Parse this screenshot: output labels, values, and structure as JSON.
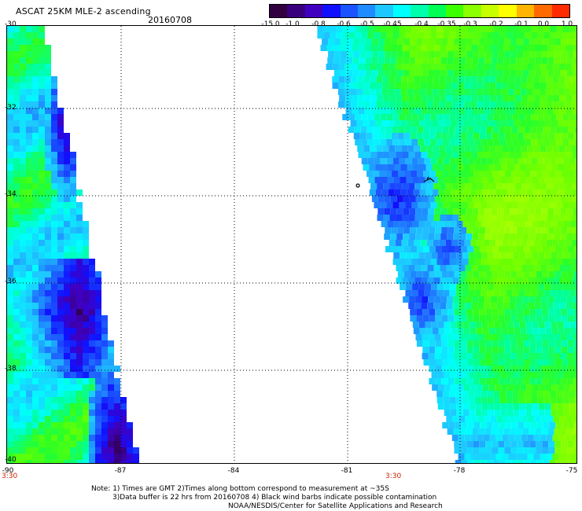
{
  "header": {
    "title": "ASCAT 25KM MLE-2 ascending",
    "date": "20160708"
  },
  "colorbar": {
    "colors": [
      "#300040",
      "#38007c",
      "#4000c0",
      "#1010ff",
      "#1a54ff",
      "#1e8cff",
      "#1ec8ff",
      "#00ffff",
      "#00ffaa",
      "#00ff55",
      "#3cff00",
      "#8cff00",
      "#c8ff00",
      "#ffff00",
      "#ffb400",
      "#ff6a00",
      "#ff2a00"
    ],
    "labels": [
      "-15.0",
      "-1.0",
      "-0.8",
      "-0.6",
      "-0.5",
      "-0.45",
      "-0.4",
      "-0.35",
      "-0.3",
      "-0.2",
      "-0.1",
      "0.0",
      "1.0"
    ]
  },
  "axes": {
    "lat_labels": [
      "-30",
      "-32",
      "-34",
      "-36",
      "-38",
      "-40"
    ],
    "lon_labels": [
      "-90",
      "-87",
      "-84",
      "-81",
      "-78",
      "-75"
    ],
    "time_labels": [
      "3:30",
      "3:30"
    ]
  },
  "notes": {
    "line1": "Note: 1) Times are GMT 2)Times along bottom correspond to measurement at ~35S",
    "line2": "3)Data buffer is 22 hrs from 20160708 4) Black wind barbs indicate possible contamination",
    "line3": "NOAA/NESDIS/Center for Satellite Applications and Research"
  }
}
